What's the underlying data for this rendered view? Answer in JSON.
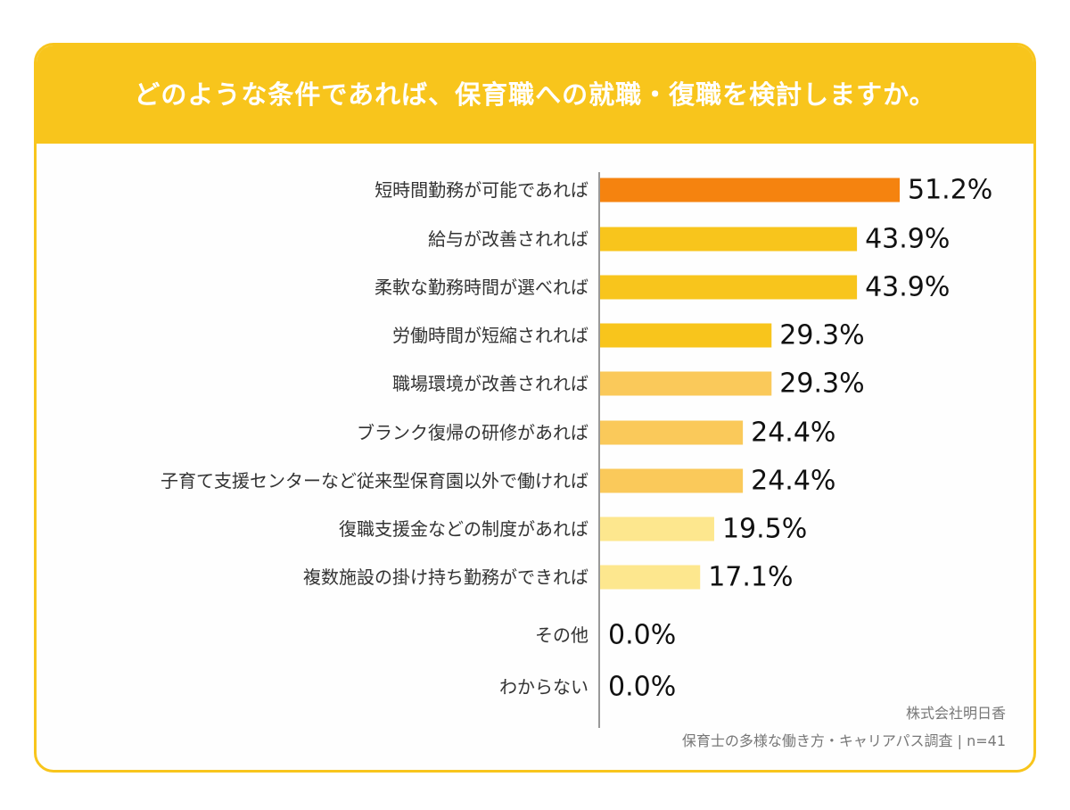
{
  "chart_data": {
    "type": "bar",
    "orientation": "horizontal",
    "title": "どのような条件であれば、保育職への就職・復職を検討しますか。",
    "categories": [
      "短時間勤務が可能であれば",
      "給与が改善されれば",
      "柔軟な勤務時間が選べれば",
      "労働時間が短縮されれば",
      "職場環境が改善されれば",
      "ブランク復帰の研修があれば",
      "子育て支援センターなど従来型保育園以外で働ければ",
      "復職支援金などの制度があれば",
      "複数施設の掛け持ち勤務ができれば",
      "その他",
      "わからない"
    ],
    "values": [
      51.2,
      43.9,
      43.9,
      29.3,
      29.3,
      24.4,
      24.4,
      19.5,
      17.1,
      0.0,
      0.0
    ],
    "value_labels": [
      "51.2%",
      "43.9%",
      "43.9%",
      "29.3%",
      "29.3%",
      "24.4%",
      "24.4%",
      "19.5%",
      "17.1%",
      "0.0%",
      "0.0%"
    ],
    "bar_colors": [
      "#f5830f",
      "#f8c51c",
      "#f8c51c",
      "#f8c51c",
      "#fac95a",
      "#fac95a",
      "#fac95a",
      "#fde78e",
      "#fde78e",
      "#fde78e",
      "#fde78e"
    ],
    "xlim": [
      0,
      51.2
    ],
    "xlabel": "",
    "ylabel": "",
    "grid": false,
    "legend": "none"
  },
  "footer": {
    "company": "株式会社明日香",
    "survey": "保育士の多様な働き方・キャリアパス調査 | n=41"
  },
  "colors": {
    "header": "#f8c51c",
    "border": "#f8c51c",
    "axis": "#999999"
  }
}
